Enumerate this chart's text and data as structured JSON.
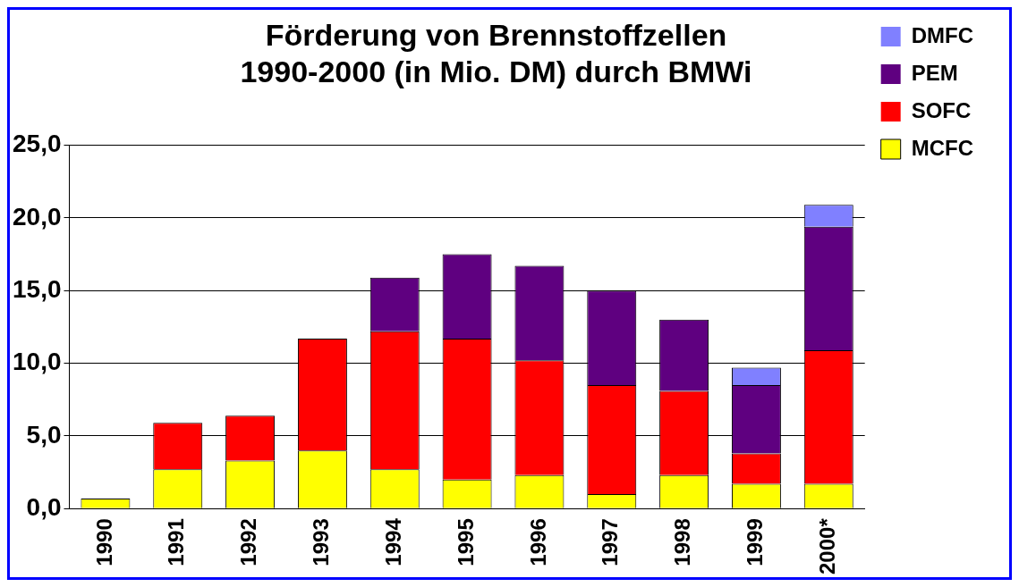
{
  "chart_data": {
    "type": "bar",
    "title": [
      "Förderung von Brennstoffzellen",
      "1990-2000 (in Mio. DM) durch BMWi"
    ],
    "stacked": true,
    "categories": [
      "1990",
      "1991",
      "1992",
      "1993",
      "1994",
      "1995",
      "1996",
      "1997",
      "1998",
      "1999",
      "2000*"
    ],
    "series": [
      {
        "name": "MCFC",
        "color": "#ffff00",
        "values": [
          0.7,
          2.7,
          3.3,
          4.0,
          2.7,
          2.0,
          2.3,
          1.0,
          2.3,
          1.7,
          1.7
        ]
      },
      {
        "name": "SOFC",
        "color": "#ff0000",
        "values": [
          0,
          3.2,
          3.1,
          7.7,
          9.5,
          9.7,
          7.9,
          7.5,
          5.8,
          2.1,
          9.2
        ]
      },
      {
        "name": "PEM",
        "color": "#5f0080",
        "values": [
          0,
          0,
          0,
          0,
          3.7,
          5.8,
          6.5,
          6.5,
          4.9,
          4.7,
          8.5
        ]
      },
      {
        "name": "DMFC",
        "color": "#8080ff",
        "values": [
          0,
          0,
          0,
          0,
          0,
          0,
          0,
          0,
          0,
          1.2,
          1.5
        ]
      }
    ],
    "ylim": [
      0,
      25
    ],
    "yticks": [
      {
        "value": 0,
        "label": "0,0"
      },
      {
        "value": 5,
        "label": "5,0"
      },
      {
        "value": 10,
        "label": "10,0"
      },
      {
        "value": 15,
        "label": "15,0"
      },
      {
        "value": 20,
        "label": "20,0"
      },
      {
        "value": 25,
        "label": "25,0"
      }
    ],
    "grid": "y",
    "legend": "top right"
  }
}
